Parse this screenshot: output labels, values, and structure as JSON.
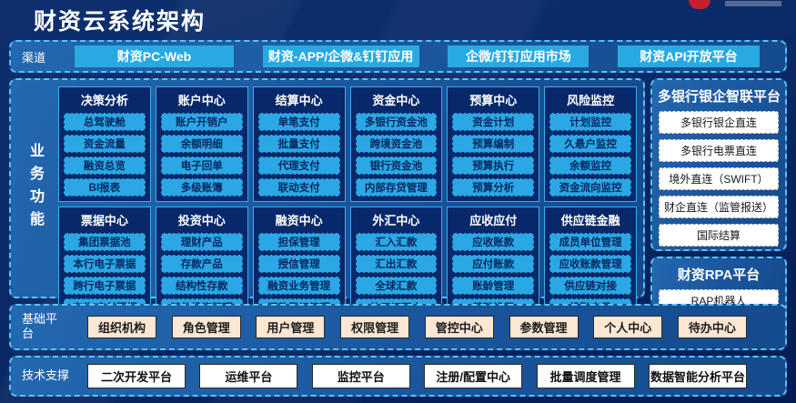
{
  "header": {
    "title": "财资云系统架构"
  },
  "channels": {
    "label": "渠道",
    "buttons": [
      "财资PC-Web",
      "财资-APP/企微&钉钉应用",
      "企微/钉钉应用市场",
      "财资API开放平台"
    ]
  },
  "business": {
    "label": "业务功能",
    "columns": [
      {
        "title": "决策分析",
        "items": [
          "总驾驶舱",
          "资金流量",
          "融资总览",
          "BI报表"
        ]
      },
      {
        "title": "账户中心",
        "items": [
          "账户开销户",
          "余额明细",
          "电子回单",
          "多级账簿"
        ]
      },
      {
        "title": "结算中心",
        "items": [
          "单笔支付",
          "批量支付",
          "代理支付",
          "联动支付"
        ]
      },
      {
        "title": "资金中心",
        "items": [
          "多银行资金池",
          "跨境资金池",
          "银行资金池",
          "内部存贷管理"
        ]
      },
      {
        "title": "预算中心",
        "items": [
          "资金计划",
          "预算编制",
          "预算执行",
          "预算分析"
        ]
      },
      {
        "title": "风险监控",
        "items": [
          "计划监控",
          "久悬户监控",
          "余额监控",
          "资金流向监控"
        ]
      },
      {
        "title": "票据中心",
        "items": [
          "集团票据池",
          "本行电子票据",
          "跨行电子票据",
          "应收/应付票据"
        ]
      },
      {
        "title": "投资中心",
        "items": [
          "理财产品",
          "存款产品",
          "结构性存款",
          "其他投资管理"
        ]
      },
      {
        "title": "融资中心",
        "items": [
          "担保管理",
          "授信管理",
          "融资业务管理",
          "还款登记管理"
        ]
      },
      {
        "title": "外汇中心",
        "items": [
          "汇入汇款",
          "汇出汇款",
          "全球汇款",
          "信用证开立"
        ]
      },
      {
        "title": "应收应付",
        "items": [
          "应收账款",
          "应付账款",
          "账龄管理",
          "基础设置"
        ]
      },
      {
        "title": "供应链金融",
        "items": [
          "成员单位管理",
          "应收账款管理",
          "供应链对接",
          "投融交易"
        ]
      }
    ]
  },
  "bank_link": {
    "title": "多银行银企智联平台",
    "buttons": [
      "多银行银企直连",
      "多银行电票直连",
      "境外直连（SWIFT）",
      "财企直连（监管报送）",
      "国际结算"
    ]
  },
  "rpa": {
    "title": "财资RPA平台",
    "buttons": [
      "RAP机器人"
    ]
  },
  "base_platform": {
    "label": "基础平台",
    "buttons": [
      "组织机构",
      "角色管理",
      "用户管理",
      "权限管理",
      "管控中心",
      "参数管理",
      "个人中心",
      "待办中心"
    ]
  },
  "tech_support": {
    "label": "技术支撑",
    "buttons": [
      "二次开发平台",
      "运维平台",
      "监控平台",
      "注册/配置中心",
      "批量调度管理",
      "数据智能分析平台"
    ]
  },
  "icons": {
    "logo_mark": "red-arc-mark"
  },
  "colors": {
    "accent_cyan": "#29a9e1",
    "panel_blue": "#1a549a",
    "deep_navy": "#07286a",
    "dashed_border": "#5ac1f0",
    "module_border": "#3fa9f5",
    "peach_button": "#fbe7d2",
    "white_button": "#ffffff",
    "logo_red": "#c5202e",
    "page_bg": "#0a2a68"
  }
}
